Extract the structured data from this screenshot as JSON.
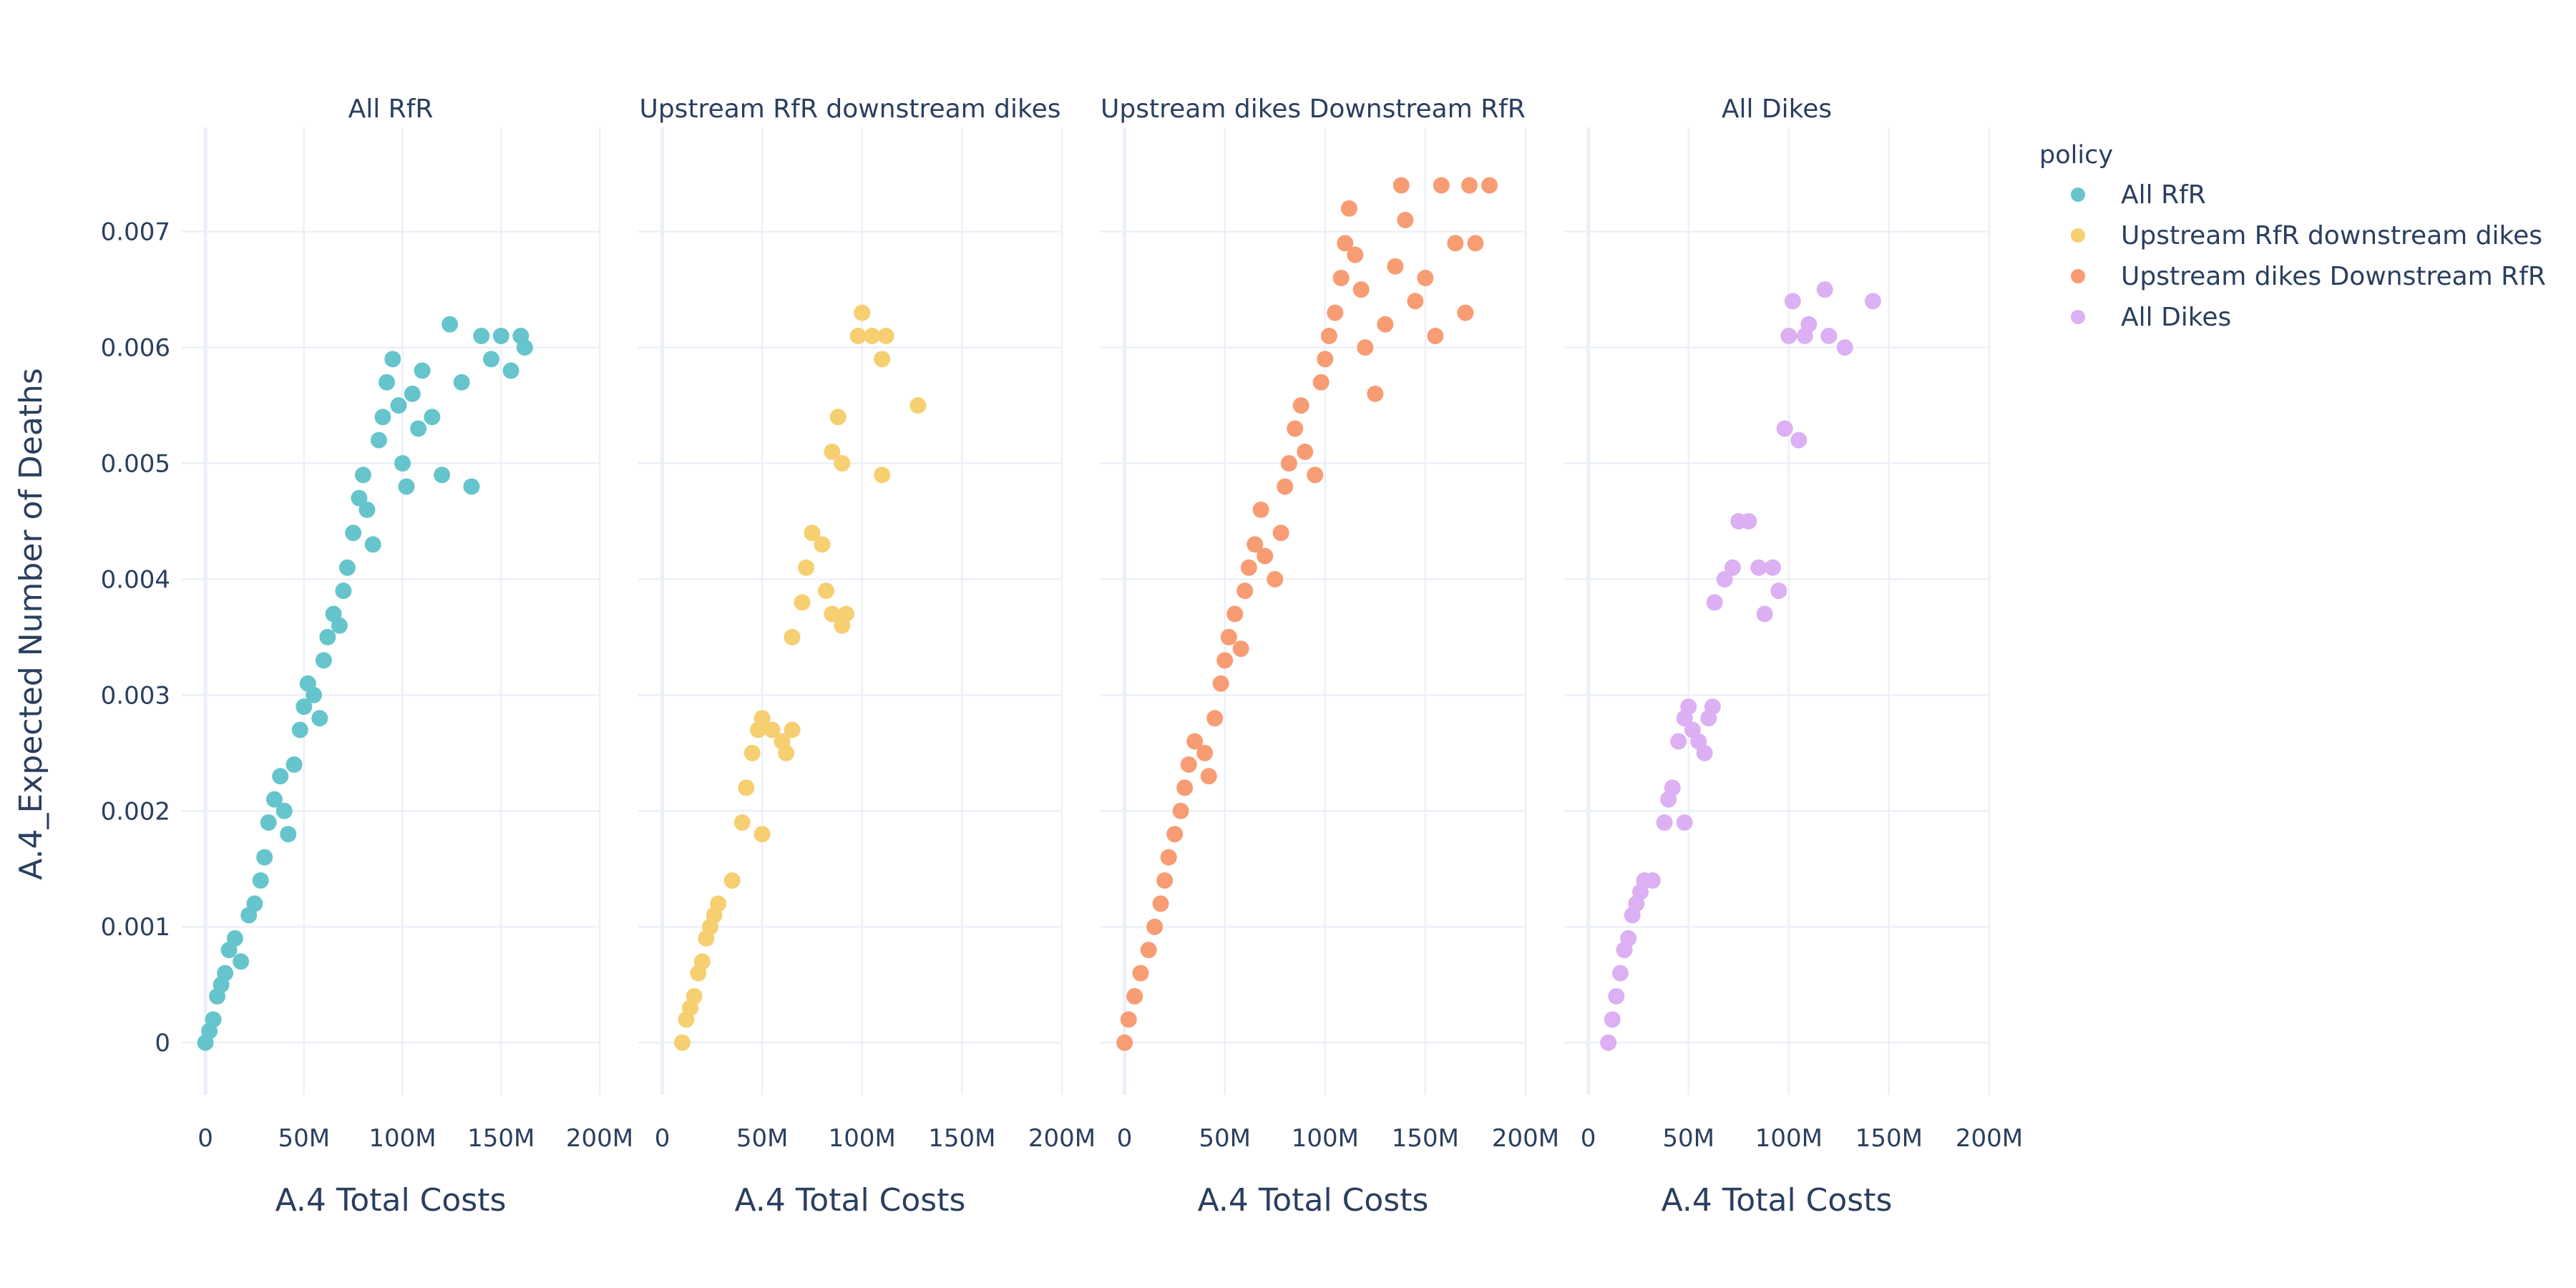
{
  "chart_data": {
    "type": "scatter",
    "title": "",
    "xlabel": "A.4 Total Costs",
    "ylabel": "A.4_Expected Number of Deaths",
    "xlim": [
      -12000000,
      200000000
    ],
    "ylim": [
      -0.00045,
      0.0079
    ],
    "x_ticks": [
      0,
      50000000,
      100000000,
      150000000,
      200000000
    ],
    "x_tick_labels": [
      "0",
      "50M",
      "100M",
      "150M",
      "200M"
    ],
    "y_ticks": [
      0,
      0.001,
      0.002,
      0.003,
      0.004,
      0.005,
      0.006,
      0.007
    ],
    "y_tick_labels": [
      "0",
      "0.001",
      "0.002",
      "0.003",
      "0.004",
      "0.005",
      "0.006",
      "0.007"
    ],
    "grid": true,
    "legend": {
      "title": "policy",
      "position": "top-right"
    },
    "facets": [
      "All RfR",
      "Upstream RfR downstream dikes",
      "Upstream dikes Downstream RfR",
      "All Dikes"
    ],
    "series": [
      {
        "name": "All RfR",
        "color": "#66c5cc",
        "points": [
          [
            0,
            0
          ],
          [
            2000000,
            0.0001
          ],
          [
            4000000,
            0.0002
          ],
          [
            6000000,
            0.0004
          ],
          [
            8000000,
            0.0005
          ],
          [
            10000000,
            0.0006
          ],
          [
            12000000,
            0.0008
          ],
          [
            15000000,
            0.0009
          ],
          [
            18000000,
            0.0007
          ],
          [
            22000000,
            0.0011
          ],
          [
            25000000,
            0.0012
          ],
          [
            28000000,
            0.0014
          ],
          [
            30000000,
            0.0016
          ],
          [
            32000000,
            0.0019
          ],
          [
            35000000,
            0.0021
          ],
          [
            38000000,
            0.0023
          ],
          [
            40000000,
            0.002
          ],
          [
            42000000,
            0.0018
          ],
          [
            45000000,
            0.0024
          ],
          [
            48000000,
            0.0027
          ],
          [
            50000000,
            0.0029
          ],
          [
            52000000,
            0.0031
          ],
          [
            55000000,
            0.003
          ],
          [
            58000000,
            0.0028
          ],
          [
            60000000,
            0.0033
          ],
          [
            62000000,
            0.0035
          ],
          [
            65000000,
            0.0037
          ],
          [
            68000000,
            0.0036
          ],
          [
            70000000,
            0.0039
          ],
          [
            72000000,
            0.0041
          ],
          [
            75000000,
            0.0044
          ],
          [
            78000000,
            0.0047
          ],
          [
            80000000,
            0.0049
          ],
          [
            82000000,
            0.0046
          ],
          [
            85000000,
            0.0043
          ],
          [
            88000000,
            0.0052
          ],
          [
            90000000,
            0.0054
          ],
          [
            92000000,
            0.0057
          ],
          [
            95000000,
            0.0059
          ],
          [
            98000000,
            0.0055
          ],
          [
            100000000,
            0.005
          ],
          [
            102000000,
            0.0048
          ],
          [
            105000000,
            0.0056
          ],
          [
            108000000,
            0.0053
          ],
          [
            110000000,
            0.0058
          ],
          [
            115000000,
            0.0054
          ],
          [
            120000000,
            0.0049
          ],
          [
            124000000,
            0.0062
          ],
          [
            130000000,
            0.0057
          ],
          [
            135000000,
            0.0048
          ],
          [
            140000000,
            0.0061
          ],
          [
            145000000,
            0.0059
          ],
          [
            150000000,
            0.0061
          ],
          [
            155000000,
            0.0058
          ],
          [
            160000000,
            0.0061
          ],
          [
            162000000,
            0.006
          ]
        ]
      },
      {
        "name": "Upstream RfR downstream dikes",
        "color": "#f6cf71",
        "points": [
          [
            10000000,
            0
          ],
          [
            12000000,
            0.0002
          ],
          [
            14000000,
            0.0003
          ],
          [
            16000000,
            0.0004
          ],
          [
            18000000,
            0.0006
          ],
          [
            20000000,
            0.0007
          ],
          [
            22000000,
            0.0009
          ],
          [
            24000000,
            0.001
          ],
          [
            26000000,
            0.0011
          ],
          [
            28000000,
            0.0012
          ],
          [
            35000000,
            0.0014
          ],
          [
            40000000,
            0.0019
          ],
          [
            42000000,
            0.0022
          ],
          [
            45000000,
            0.0025
          ],
          [
            48000000,
            0.0027
          ],
          [
            50000000,
            0.0028
          ],
          [
            55000000,
            0.0027
          ],
          [
            60000000,
            0.0026
          ],
          [
            62000000,
            0.0025
          ],
          [
            65000000,
            0.0027
          ],
          [
            50000000,
            0.0018
          ],
          [
            65000000,
            0.0035
          ],
          [
            70000000,
            0.0038
          ],
          [
            72000000,
            0.0041
          ],
          [
            75000000,
            0.0044
          ],
          [
            80000000,
            0.0043
          ],
          [
            82000000,
            0.0039
          ],
          [
            85000000,
            0.0037
          ],
          [
            90000000,
            0.0036
          ],
          [
            92000000,
            0.0037
          ],
          [
            85000000,
            0.0051
          ],
          [
            88000000,
            0.0054
          ],
          [
            90000000,
            0.005
          ],
          [
            98000000,
            0.0061
          ],
          [
            100000000,
            0.0063
          ],
          [
            105000000,
            0.0061
          ],
          [
            110000000,
            0.0059
          ],
          [
            112000000,
            0.0061
          ],
          [
            110000000,
            0.0049
          ],
          [
            128000000,
            0.0055
          ]
        ]
      },
      {
        "name": "Upstream dikes Downstream RfR",
        "color": "#f89c74",
        "points": [
          [
            0,
            0
          ],
          [
            2000000,
            0.0002
          ],
          [
            5000000,
            0.0004
          ],
          [
            8000000,
            0.0006
          ],
          [
            12000000,
            0.0008
          ],
          [
            15000000,
            0.001
          ],
          [
            18000000,
            0.0012
          ],
          [
            20000000,
            0.0014
          ],
          [
            22000000,
            0.0016
          ],
          [
            25000000,
            0.0018
          ],
          [
            28000000,
            0.002
          ],
          [
            30000000,
            0.0022
          ],
          [
            32000000,
            0.0024
          ],
          [
            35000000,
            0.0026
          ],
          [
            40000000,
            0.0025
          ],
          [
            42000000,
            0.0023
          ],
          [
            45000000,
            0.0028
          ],
          [
            48000000,
            0.0031
          ],
          [
            50000000,
            0.0033
          ],
          [
            52000000,
            0.0035
          ],
          [
            55000000,
            0.0037
          ],
          [
            58000000,
            0.0034
          ],
          [
            60000000,
            0.0039
          ],
          [
            62000000,
            0.0041
          ],
          [
            65000000,
            0.0043
          ],
          [
            68000000,
            0.0046
          ],
          [
            70000000,
            0.0042
          ],
          [
            75000000,
            0.004
          ],
          [
            78000000,
            0.0044
          ],
          [
            80000000,
            0.0048
          ],
          [
            82000000,
            0.005
          ],
          [
            85000000,
            0.0053
          ],
          [
            88000000,
            0.0055
          ],
          [
            90000000,
            0.0051
          ],
          [
            95000000,
            0.0049
          ],
          [
            98000000,
            0.0057
          ],
          [
            100000000,
            0.0059
          ],
          [
            102000000,
            0.0061
          ],
          [
            105000000,
            0.0063
          ],
          [
            108000000,
            0.0066
          ],
          [
            110000000,
            0.0069
          ],
          [
            112000000,
            0.0072
          ],
          [
            115000000,
            0.0068
          ],
          [
            118000000,
            0.0065
          ],
          [
            120000000,
            0.006
          ],
          [
            125000000,
            0.0056
          ],
          [
            130000000,
            0.0062
          ],
          [
            135000000,
            0.0067
          ],
          [
            138000000,
            0.0074
          ],
          [
            140000000,
            0.0071
          ],
          [
            145000000,
            0.0064
          ],
          [
            150000000,
            0.0066
          ],
          [
            155000000,
            0.0061
          ],
          [
            158000000,
            0.0074
          ],
          [
            165000000,
            0.0069
          ],
          [
            170000000,
            0.0063
          ],
          [
            172000000,
            0.0074
          ],
          [
            175000000,
            0.0069
          ],
          [
            182000000,
            0.0074
          ]
        ]
      },
      {
        "name": "All Dikes",
        "color": "#dcb0f2",
        "points": [
          [
            10000000,
            0
          ],
          [
            12000000,
            0.0002
          ],
          [
            14000000,
            0.0004
          ],
          [
            16000000,
            0.0006
          ],
          [
            18000000,
            0.0008
          ],
          [
            20000000,
            0.0009
          ],
          [
            22000000,
            0.0011
          ],
          [
            24000000,
            0.0012
          ],
          [
            26000000,
            0.0013
          ],
          [
            28000000,
            0.0014
          ],
          [
            32000000,
            0.0014
          ],
          [
            38000000,
            0.0019
          ],
          [
            40000000,
            0.0021
          ],
          [
            42000000,
            0.0022
          ],
          [
            45000000,
            0.0026
          ],
          [
            48000000,
            0.0028
          ],
          [
            50000000,
            0.0029
          ],
          [
            52000000,
            0.0027
          ],
          [
            55000000,
            0.0026
          ],
          [
            58000000,
            0.0025
          ],
          [
            60000000,
            0.0028
          ],
          [
            62000000,
            0.0029
          ],
          [
            48000000,
            0.0019
          ],
          [
            63000000,
            0.0038
          ],
          [
            68000000,
            0.004
          ],
          [
            72000000,
            0.0041
          ],
          [
            75000000,
            0.0045
          ],
          [
            80000000,
            0.0045
          ],
          [
            85000000,
            0.0041
          ],
          [
            88000000,
            0.0037
          ],
          [
            92000000,
            0.0041
          ],
          [
            95000000,
            0.0039
          ],
          [
            98000000,
            0.0053
          ],
          [
            100000000,
            0.0061
          ],
          [
            102000000,
            0.0064
          ],
          [
            105000000,
            0.0052
          ],
          [
            108000000,
            0.0061
          ],
          [
            110000000,
            0.0062
          ],
          [
            118000000,
            0.0065
          ],
          [
            120000000,
            0.0061
          ],
          [
            128000000,
            0.006
          ],
          [
            142000000,
            0.0064
          ]
        ]
      }
    ]
  }
}
